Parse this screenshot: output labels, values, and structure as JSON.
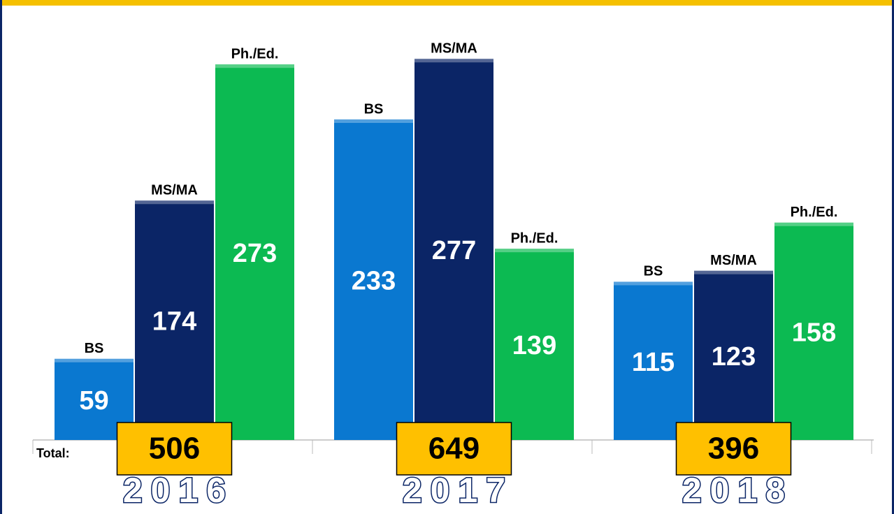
{
  "chart_data": {
    "type": "bar",
    "categories": [
      "2016",
      "2017",
      "2018"
    ],
    "series": [
      {
        "name": "BS",
        "color": "#0a78d0",
        "values": [
          59,
          233,
          115
        ]
      },
      {
        "name": "MS/MA",
        "color": "#0b2566",
        "values": [
          174,
          277,
          123
        ]
      },
      {
        "name": "Ph./Ed.",
        "color": "#0cba52",
        "values": [
          273,
          139,
          158
        ]
      }
    ],
    "total_label": "Total:",
    "totals": [
      506,
      649,
      396
    ]
  }
}
